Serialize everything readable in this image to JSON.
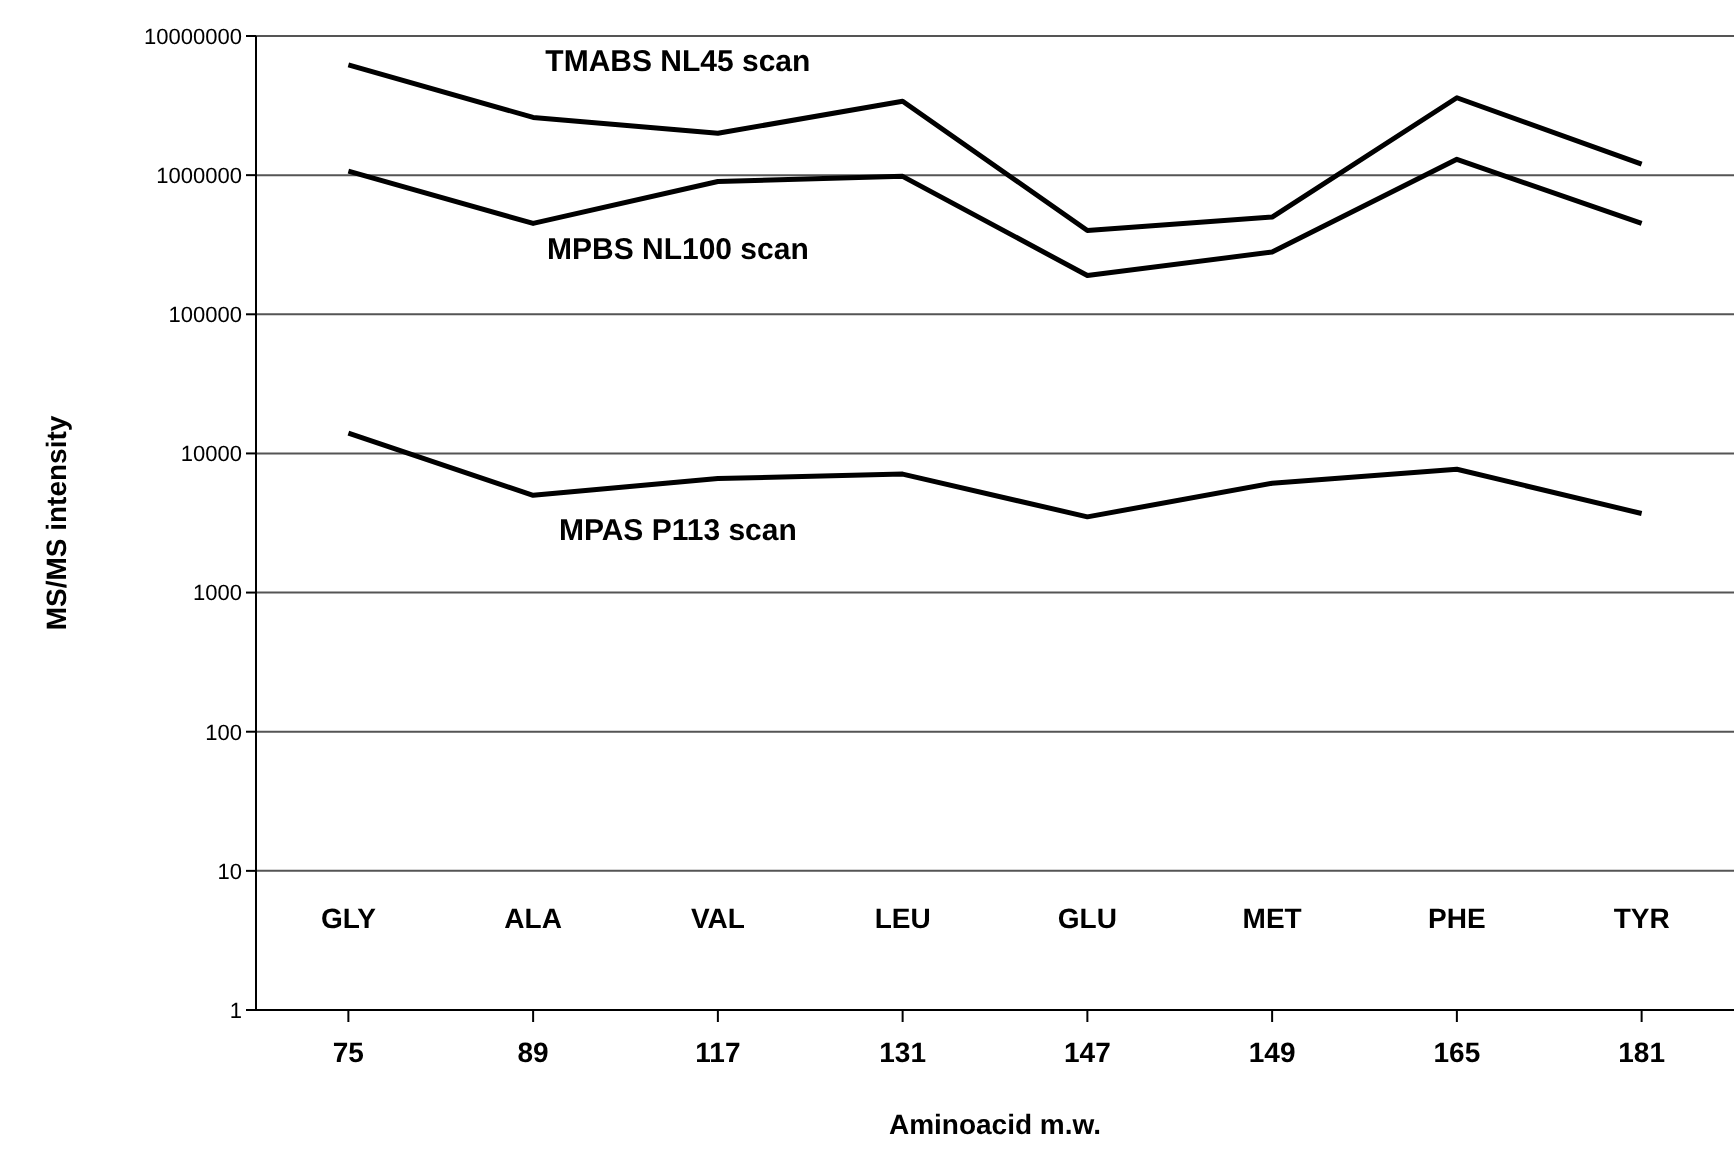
{
  "chart_data": {
    "type": "line",
    "xlabel": "Aminoacid m.w.",
    "ylabel": "MS/MS intensity",
    "categories": [
      "75",
      "89",
      "117",
      "131",
      "147",
      "149",
      "165",
      "181"
    ],
    "series": [
      {
        "name": "TMABS NL45 scan",
        "color": "#000000",
        "values": [
          6200000,
          2600000,
          2000000,
          3400000,
          400000,
          500000,
          3600000,
          1200000
        ]
      },
      {
        "name": "MPBS NL100 scan",
        "color": "#000000",
        "values": [
          1070000,
          450000,
          900000,
          980000,
          190000,
          280000,
          1300000,
          450000
        ]
      },
      {
        "name": "MPAS P113 scan",
        "color": "#000000",
        "values": [
          14000,
          5000,
          6600,
          7100,
          3500,
          6100,
          7700,
          3700
        ]
      }
    ],
    "log": true,
    "ylim": [
      1,
      10000000
    ],
    "yticks": [
      1,
      10,
      100,
      1000,
      10000,
      100000,
      1000000,
      10000000
    ],
    "grid": "y",
    "legend": false,
    "marker": "none",
    "line_style": "solid",
    "annotations": [
      "GLY",
      "ALA",
      "VAL",
      "LEU",
      "GLU",
      "MET",
      "PHE",
      "TYR"
    ]
  }
}
